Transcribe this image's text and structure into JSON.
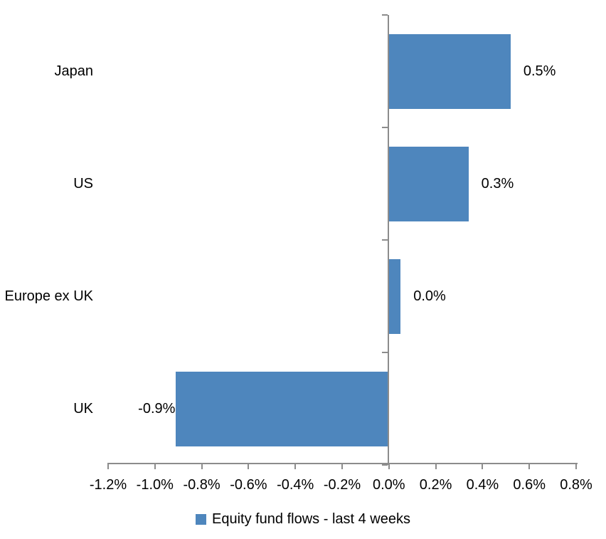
{
  "chart_data": {
    "type": "bar",
    "orientation": "horizontal",
    "title": "",
    "xlabel": "",
    "ylabel": "",
    "categories": [
      "Japan",
      "US",
      "Europe ex UK",
      "UK"
    ],
    "series": [
      {
        "name": "Equity fund flows - last 4 weeks",
        "values": [
          0.52,
          0.34,
          0.05,
          -0.91
        ],
        "data_labels": [
          "0.5%",
          "0.3%",
          "0.0%",
          "-0.9%"
        ]
      }
    ],
    "xlim": [
      -1.2,
      0.8
    ],
    "x_tick_step": 0.2,
    "x_tick_labels": [
      "-1.2%",
      "-1.0%",
      "-0.8%",
      "-0.6%",
      "-0.4%",
      "-0.2%",
      "0.0%",
      "0.2%",
      "0.4%",
      "0.6%",
      "0.8%"
    ],
    "grid": false,
    "legend": {
      "position": "bottom",
      "label": "Equity fund flows - last 4 weeks"
    },
    "colors": {
      "bar": "#4E86BD",
      "axis": "#8C8C8C",
      "text": "#000000",
      "background": "#FFFFFF"
    }
  }
}
